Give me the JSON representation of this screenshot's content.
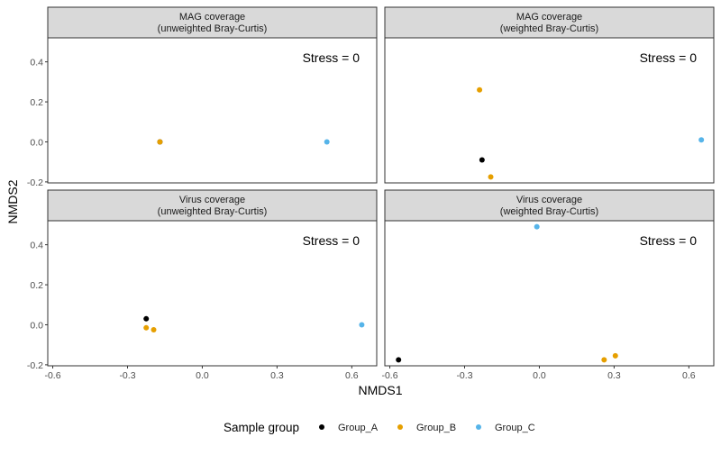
{
  "chart_data": {
    "type": "scatter",
    "xlabel": "NMDS1",
    "ylabel": "NMDS2",
    "xlim": [
      -0.62,
      0.7
    ],
    "ylim": [
      -0.205,
      0.52
    ],
    "x_ticks": [
      -0.6,
      -0.3,
      0.0,
      0.3,
      0.6
    ],
    "x_tick_labels": [
      "-0.6",
      "-0.3",
      "0.0",
      "0.3",
      "0.6"
    ],
    "y_ticks": [
      -0.2,
      0.0,
      0.2,
      0.4
    ],
    "y_tick_labels": [
      "-0.2",
      "0.0",
      "0.2",
      "0.4"
    ],
    "grid": false,
    "legend": {
      "title": "Sample group",
      "position": "bottom",
      "entries": [
        {
          "name": "Group_A",
          "color": "#000000"
        },
        {
          "name": "Group_B",
          "color": "#E69F00"
        },
        {
          "name": "Group_C",
          "color": "#56B4E9"
        }
      ]
    },
    "panels": [
      {
        "title_line1": "MAG coverage",
        "title_line2": "(unweighted Bray-Curtis)",
        "stress": "Stress = 0",
        "points": [
          {
            "group": "Group_A",
            "x": -0.17,
            "y": 0.0
          },
          {
            "group": "Group_B",
            "x": -0.17,
            "y": 0.0
          },
          {
            "group": "Group_C",
            "x": 0.5,
            "y": 0.0
          }
        ]
      },
      {
        "title_line1": "MAG coverage",
        "title_line2": "(weighted Bray-Curtis)",
        "stress": "Stress = 0",
        "points": [
          {
            "group": "Group_B",
            "x": -0.24,
            "y": 0.26
          },
          {
            "group": "Group_A",
            "x": -0.23,
            "y": -0.09
          },
          {
            "group": "Group_B",
            "x": -0.195,
            "y": -0.175
          },
          {
            "group": "Group_C",
            "x": 0.65,
            "y": 0.01
          }
        ]
      },
      {
        "title_line1": "Virus coverage",
        "title_line2": "(unweighted Bray-Curtis)",
        "stress": "Stress = 0",
        "points": [
          {
            "group": "Group_A",
            "x": -0.225,
            "y": 0.03
          },
          {
            "group": "Group_B",
            "x": -0.225,
            "y": -0.015
          },
          {
            "group": "Group_B",
            "x": -0.195,
            "y": -0.025
          },
          {
            "group": "Group_C",
            "x": 0.64,
            "y": 0.0
          }
        ]
      },
      {
        "title_line1": "Virus coverage",
        "title_line2": "(weighted Bray-Curtis)",
        "stress": "Stress = 0",
        "points": [
          {
            "group": "Group_C",
            "x": -0.01,
            "y": 0.49
          },
          {
            "group": "Group_A",
            "x": -0.565,
            "y": -0.175
          },
          {
            "group": "Group_B",
            "x": 0.26,
            "y": -0.175
          },
          {
            "group": "Group_B",
            "x": 0.305,
            "y": -0.155
          }
        ]
      }
    ]
  }
}
